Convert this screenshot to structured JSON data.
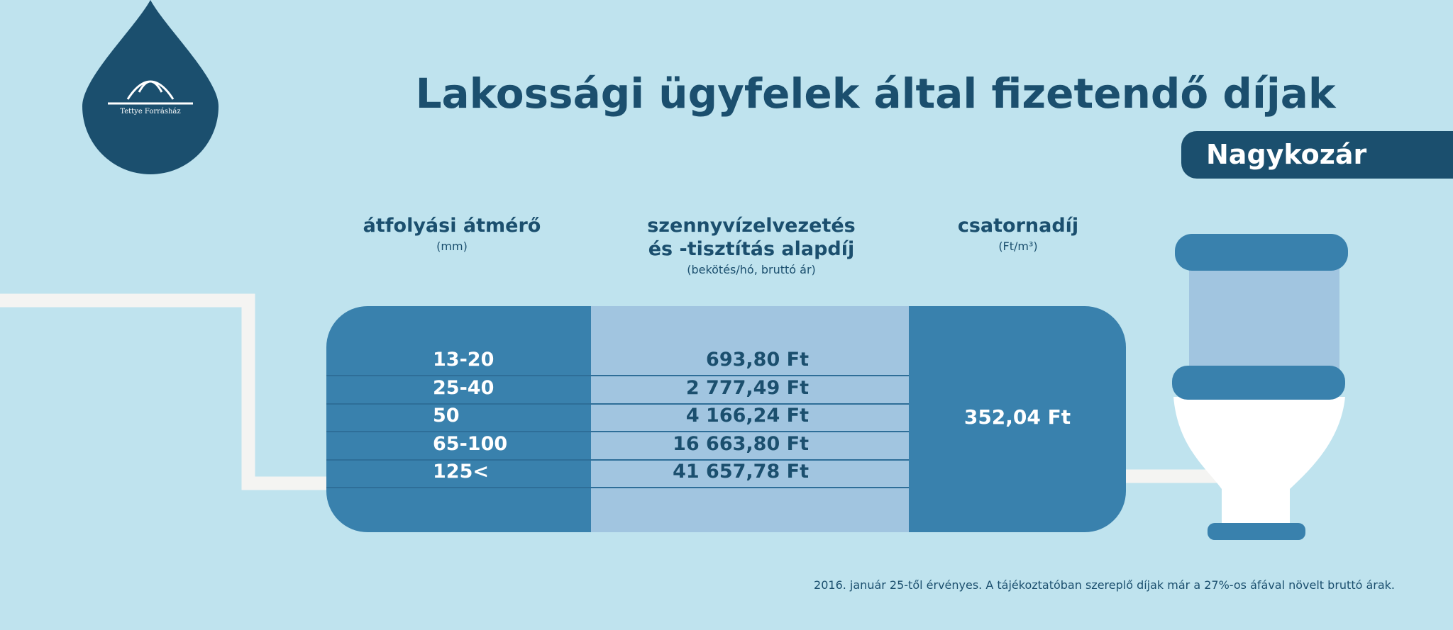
{
  "logo": {
    "text": "Tettye Forrásház"
  },
  "header": {
    "title": "Lakossági ügyfelek által fizetendő díjak",
    "subtitle": "Nagykozár"
  },
  "table": {
    "columns": [
      {
        "title_lines": [
          "átfolyási átmérő"
        ],
        "unit": "(mm)"
      },
      {
        "title_lines": [
          "szennyvízelvezetés",
          "és -tisztítás alapdíj"
        ],
        "unit": "(bekötés/hó, bruttó ár)"
      },
      {
        "title_lines": [
          "csatornadíj"
        ],
        "unit": "(Ft/m³)"
      }
    ],
    "rows": [
      [
        "13-20",
        "693,80 Ft"
      ],
      [
        "25-40",
        "2 777,49 Ft"
      ],
      [
        "50",
        "4 166,24 Ft"
      ],
      [
        "65-100",
        "16 663,80 Ft"
      ],
      [
        "125<",
        "41 657,78 Ft"
      ]
    ],
    "sewer_fee": "352,04 Ft"
  },
  "footnote": "2016. január 25-től érvényes. A tájékoztatóban szereplő díjak már a 27%-os áfával növelt bruttó árak."
}
